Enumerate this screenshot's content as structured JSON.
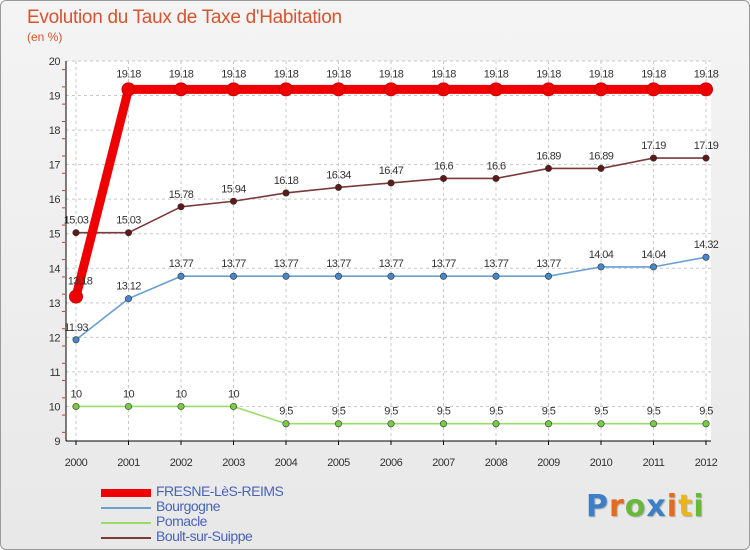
{
  "colors": {
    "title": "#d6542f",
    "axis": "#000000",
    "grid": "#c8c8c8",
    "axis_tick_red": "#d03a2a"
  },
  "logo": {
    "text": "Proxiti",
    "letter_colors": [
      "#3d7fc4",
      "#e56a1e",
      "#68b83a",
      "#3d7fc4",
      "#e56a1e",
      "#e8b51a",
      "#68b83a"
    ]
  },
  "chart_data": {
    "type": "line",
    "title": "Evolution du Taux de Taxe d'Habitation",
    "subtitle": "(en %)",
    "xlabel": "",
    "ylabel": "",
    "x": [
      "2000",
      "2001",
      "2002",
      "2003",
      "2004",
      "2005",
      "2006",
      "2007",
      "2008",
      "2009",
      "2010",
      "2011",
      "2012"
    ],
    "ylim": [
      9,
      20
    ],
    "yticks": [
      "9",
      "10",
      "11",
      "12",
      "13",
      "14",
      "15",
      "16",
      "17",
      "18",
      "19",
      "20"
    ],
    "grid": true,
    "legend_position": "bottom-left",
    "series": [
      {
        "name": "FRESNE-LèS-REIMS",
        "color": "#ee0000",
        "thick": true,
        "values": [
          13.18,
          19.18,
          19.18,
          19.18,
          19.18,
          19.18,
          19.18,
          19.18,
          19.18,
          19.18,
          19.18,
          19.18,
          19.18
        ],
        "labels": [
          "13.18",
          "19.18",
          "19.18",
          "19.18",
          "19.18",
          "19.18",
          "19.18",
          "19.18",
          "19.18",
          "19.18",
          "19.18",
          "19.18",
          "19.18"
        ]
      },
      {
        "name": "Bourgogne",
        "color": "#6b9fd2",
        "marker": "#4488cc",
        "thick": false,
        "values": [
          11.93,
          13.12,
          13.77,
          13.77,
          13.77,
          13.77,
          13.77,
          13.77,
          13.77,
          13.77,
          14.04,
          14.04,
          14.32
        ],
        "labels": [
          "11.93",
          "13.12",
          "13.77",
          "13.77",
          "13.77",
          "13.77",
          "13.77",
          "13.77",
          "13.77",
          "13.77",
          "14.04",
          "14.04",
          "14.32"
        ]
      },
      {
        "name": "Pomacle",
        "color": "#99dd66",
        "marker": "#77cc44",
        "thick": false,
        "values": [
          10,
          10,
          10,
          10,
          9.5,
          9.5,
          9.5,
          9.5,
          9.5,
          9.5,
          9.5,
          9.5,
          9.5
        ],
        "labels": [
          "10",
          "10",
          "10",
          "10",
          "9.5",
          "9.5",
          "9.5",
          "9.5",
          "9.5",
          "9.5",
          "9.5",
          "9.5",
          "9.5"
        ]
      },
      {
        "name": "Boult-sur-Suippe",
        "color": "#7a3a3a",
        "marker": "#5e1a1a",
        "thick": false,
        "values": [
          15.03,
          15.03,
          15.78,
          15.94,
          16.18,
          16.34,
          16.47,
          16.6,
          16.6,
          16.89,
          16.89,
          17.19,
          17.19
        ],
        "labels": [
          "15.03",
          "15.03",
          "15.78",
          "15.94",
          "16.18",
          "16.34",
          "16.47",
          "16.6",
          "16.6",
          "16.89",
          "16.89",
          "17.19",
          "17.19"
        ]
      }
    ]
  }
}
